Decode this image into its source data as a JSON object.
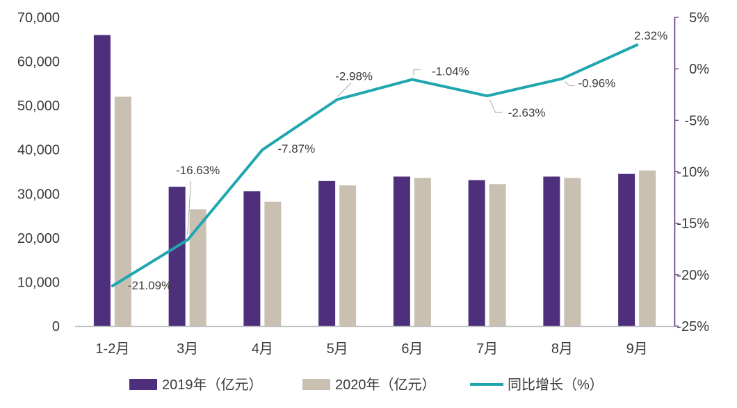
{
  "chart_data": {
    "type": "bar",
    "categories": [
      "1-2月",
      "3月",
      "4月",
      "5月",
      "6月",
      "7月",
      "8月",
      "9月"
    ],
    "series": [
      {
        "name": "2019年（亿元）",
        "type": "bar",
        "axis": "left",
        "color": "#4e2f7c",
        "values": [
          66000,
          31600,
          30600,
          32900,
          33900,
          33100,
          33900,
          34500
        ]
      },
      {
        "name": "2020年（亿元）",
        "type": "bar",
        "axis": "left",
        "color": "#c9c0b2",
        "values": [
          52000,
          26500,
          28200,
          31900,
          33600,
          32200,
          33600,
          35300
        ]
      },
      {
        "name": "同比增长（%）",
        "type": "line",
        "axis": "right",
        "color": "#1fa6ae",
        "values": [
          -21.09,
          -16.63,
          -7.87,
          -2.98,
          -1.04,
          -2.63,
          -0.96,
          2.32
        ],
        "labels": [
          "-21.09%",
          "-16.63%",
          "-7.87%",
          "-2.98%",
          "-1.04%",
          "-2.63%",
          "-0.96%",
          "2.32%"
        ]
      }
    ],
    "y_left": {
      "range": [
        0,
        70000
      ],
      "ticks": [
        0,
        10000,
        20000,
        30000,
        40000,
        50000,
        60000,
        70000
      ],
      "tick_labels": [
        "0",
        "10,000",
        "20,000",
        "30,000",
        "40,000",
        "50,000",
        "60,000",
        "70,000"
      ]
    },
    "y_right": {
      "range": [
        -25,
        5
      ],
      "ticks": [
        5,
        0,
        -5,
        -10,
        -15,
        -20,
        -25
      ],
      "tick_labels": [
        "5%",
        "0%",
        "-5%",
        "-10%",
        "-15%",
        "-20%",
        "-25%"
      ]
    },
    "grid": false,
    "legend_position": "bottom"
  }
}
